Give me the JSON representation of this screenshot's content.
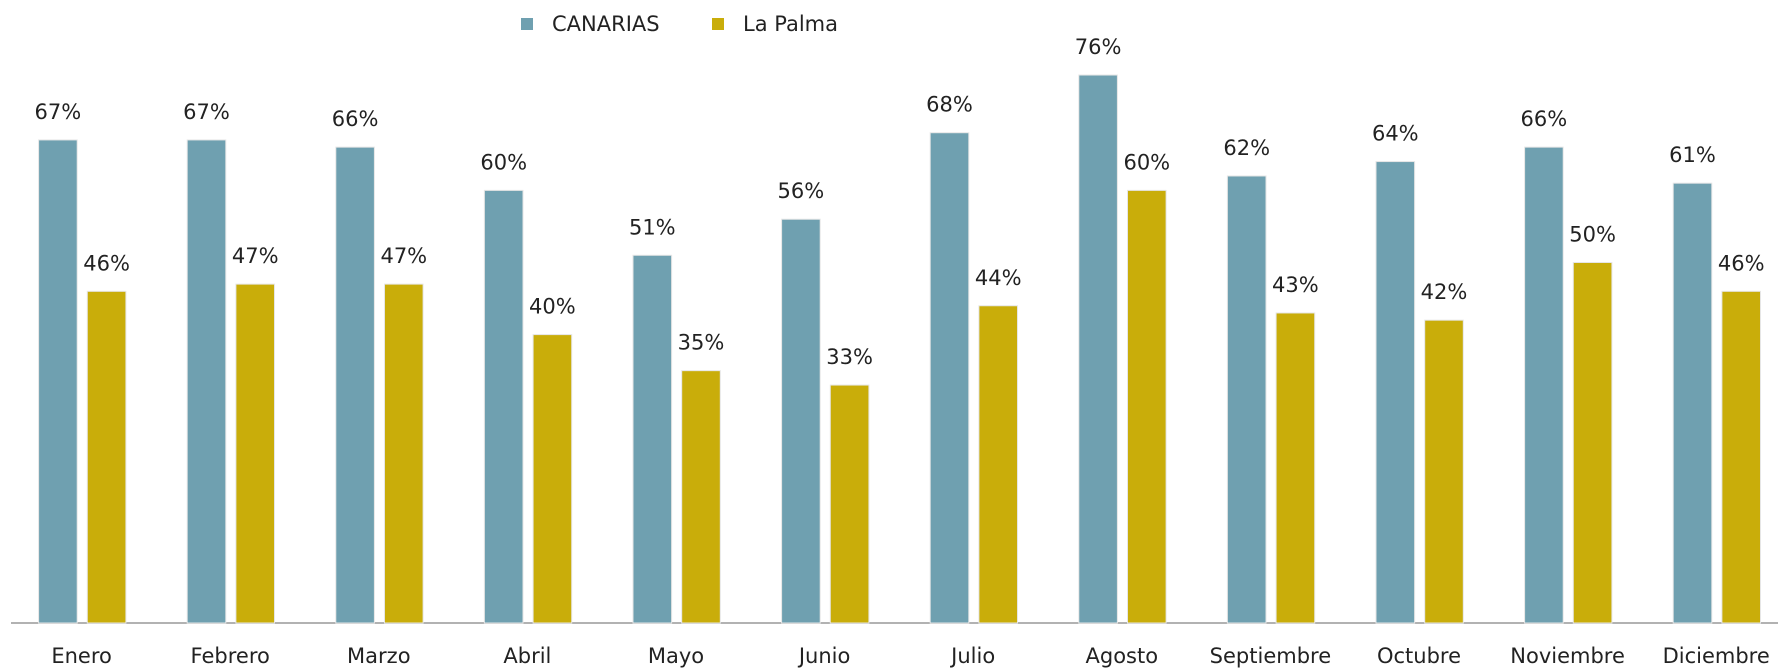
{
  "chart_data": {
    "type": "bar",
    "categories": [
      "Enero",
      "Febrero",
      "Marzo",
      "Abril",
      "Mayo",
      "Junio",
      "Julio",
      "Agosto",
      "Septiembre",
      "Octubre",
      "Noviembre",
      "Diciembre"
    ],
    "series": [
      {
        "name": "CANARIAS",
        "color": "#6fa0b0",
        "values": [
          67,
          67,
          66,
          60,
          51,
          56,
          68,
          76,
          62,
          64,
          66,
          61
        ],
        "value_labels": [
          "67%",
          "67%",
          "66%",
          "60%",
          "51%",
          "56%",
          "68%",
          "76%",
          "62%",
          "64%",
          "66%",
          "61%"
        ]
      },
      {
        "name": "La Palma",
        "color": "#c9ad0a",
        "values": [
          46,
          47,
          47,
          40,
          35,
          33,
          44,
          60,
          43,
          42,
          50,
          46
        ],
        "value_labels": [
          "46%",
          "47%",
          "47%",
          "40%",
          "35%",
          "33%",
          "44%",
          "60%",
          "43%",
          "42%",
          "50%",
          "46%"
        ]
      }
    ],
    "legend": "top"
  }
}
